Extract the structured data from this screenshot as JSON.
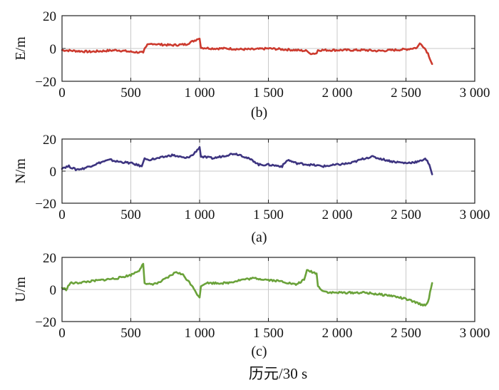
{
  "figure": {
    "xlabel": "历元/30 s",
    "colors": {
      "axis": "#222222",
      "grid": "#c9c9c9"
    }
  },
  "chart_data": [
    {
      "type": "line",
      "id": "E",
      "caption": "(b)",
      "ylabel": "E/m",
      "color": "#cc3a2e",
      "xlim": [
        0,
        3000
      ],
      "ylim": [
        -20,
        20
      ],
      "xticks": [
        0,
        500,
        1000,
        1500,
        2000,
        2500,
        3000
      ],
      "xtick_labels": [
        "0",
        "500",
        "1 000",
        "1 500",
        "2 000",
        "2 500",
        "3 000"
      ],
      "yticks": [
        -20,
        0,
        20
      ],
      "ytick_labels": [
        "−20",
        "0",
        "20"
      ],
      "series": [
        {
          "name": "E",
          "x": [
            0,
            100,
            200,
            300,
            400,
            500,
            590,
            600,
            620,
            660,
            700,
            800,
            900,
            980,
            1000,
            1010,
            1100,
            1200,
            1300,
            1400,
            1500,
            1600,
            1700,
            1780,
            1800,
            1850,
            1860,
            1900,
            2000,
            2100,
            2200,
            2300,
            2400,
            2500,
            2580,
            2600,
            2630,
            2660,
            2690
          ],
          "y": [
            -1,
            -1.5,
            -2,
            -1.5,
            -1,
            -2,
            -2.5,
            0,
            2,
            3,
            2.5,
            2,
            2.5,
            5.5,
            6,
            0.5,
            0,
            0,
            -0.5,
            -0.5,
            0,
            -0.5,
            -1,
            -1.5,
            -3,
            -3,
            -1,
            -1,
            -1,
            -1,
            -1,
            -1.5,
            -1,
            -0.5,
            0.5,
            3,
            1,
            -3,
            -9.5
          ]
        }
      ]
    },
    {
      "type": "line",
      "id": "N",
      "caption": "(a)",
      "ylabel": "N/m",
      "color": "#3d3480",
      "xlim": [
        0,
        3000
      ],
      "ylim": [
        -20,
        20
      ],
      "xticks": [
        0,
        500,
        1000,
        1500,
        2000,
        2500,
        3000
      ],
      "xtick_labels": [
        "0",
        "500",
        "1 000",
        "1 500",
        "2 000",
        "2 500",
        "3 000"
      ],
      "yticks": [
        -20,
        0,
        20
      ],
      "ytick_labels": [
        "−20",
        "0",
        "20"
      ],
      "series": [
        {
          "name": "N",
          "x": [
            0,
            50,
            100,
            150,
            200,
            300,
            350,
            400,
            500,
            580,
            600,
            620,
            700,
            800,
            900,
            950,
            1000,
            1010,
            1100,
            1200,
            1250,
            1300,
            1400,
            1430,
            1500,
            1600,
            1640,
            1700,
            1800,
            1900,
            2000,
            2100,
            2200,
            2250,
            2300,
            2400,
            2500,
            2600,
            2640,
            2670,
            2690
          ],
          "y": [
            2,
            3,
            1,
            1.5,
            3,
            6,
            7,
            6,
            5,
            3,
            8,
            7,
            8,
            10,
            8,
            10,
            15,
            9,
            8,
            10,
            11,
            10,
            6,
            4,
            4,
            3,
            7,
            5,
            4,
            3,
            4,
            5,
            8,
            9,
            8,
            6,
            5,
            6,
            8,
            4,
            -2
          ]
        }
      ]
    },
    {
      "type": "line",
      "id": "U",
      "caption": "(c)",
      "ylabel": "U/m",
      "color": "#6aa23a",
      "xlim": [
        0,
        3000
      ],
      "ylim": [
        -20,
        20
      ],
      "xticks": [
        0,
        500,
        1000,
        1500,
        2000,
        2500,
        3000
      ],
      "xtick_labels": [
        "0",
        "500",
        "1 000",
        "1 500",
        "2 000",
        "2 500",
        "3 000"
      ],
      "yticks": [
        -20,
        0,
        20
      ],
      "ytick_labels": [
        "−20",
        "0",
        "20"
      ],
      "series": [
        {
          "name": "U",
          "x": [
            0,
            30,
            60,
            100,
            200,
            300,
            400,
            500,
            560,
            590,
            600,
            620,
            700,
            780,
            830,
            880,
            950,
            990,
            1000,
            1010,
            1030,
            1050,
            1100,
            1200,
            1300,
            1400,
            1500,
            1600,
            1700,
            1760,
            1780,
            1850,
            1860,
            1900,
            1950,
            2000,
            2100,
            2200,
            2300,
            2400,
            2500,
            2600,
            2640,
            2660,
            2690
          ],
          "y": [
            1,
            0,
            4,
            4,
            5,
            6,
            7,
            9,
            12,
            16,
            4,
            3,
            4,
            8,
            11,
            9,
            2,
            -4,
            -5,
            2,
            3,
            4,
            4,
            4,
            6,
            7,
            6,
            5,
            3,
            6,
            12,
            10,
            2,
            -1,
            -2,
            -2,
            -2,
            -2,
            -3,
            -4,
            -6,
            -9,
            -10,
            -8,
            4
          ]
        }
      ]
    }
  ]
}
